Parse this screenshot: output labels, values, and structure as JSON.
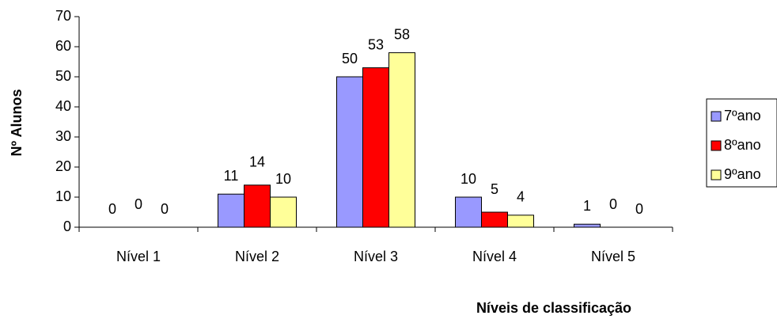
{
  "chart_data": {
    "type": "bar",
    "categories": [
      "Nível 1",
      "Nível 2",
      "Nível 3",
      "Nível 4",
      "Nível 5"
    ],
    "series": [
      {
        "name": "7ºano",
        "color": "#9999ff",
        "values": [
          0,
          11,
          50,
          10,
          1
        ]
      },
      {
        "name": "8ºano",
        "color": "#ff0000",
        "values": [
          0,
          14,
          53,
          5,
          0
        ]
      },
      {
        "name": "9ºano",
        "color": "#ffff99",
        "values": [
          0,
          10,
          58,
          4,
          0
        ]
      }
    ],
    "ylabel": "Nº Alunos",
    "xlabel": "Níveis de classificação",
    "ylim": [
      0,
      70
    ],
    "yticks": [
      0,
      10,
      20,
      30,
      40,
      50,
      60,
      70
    ],
    "grid": false,
    "legend": "right"
  }
}
